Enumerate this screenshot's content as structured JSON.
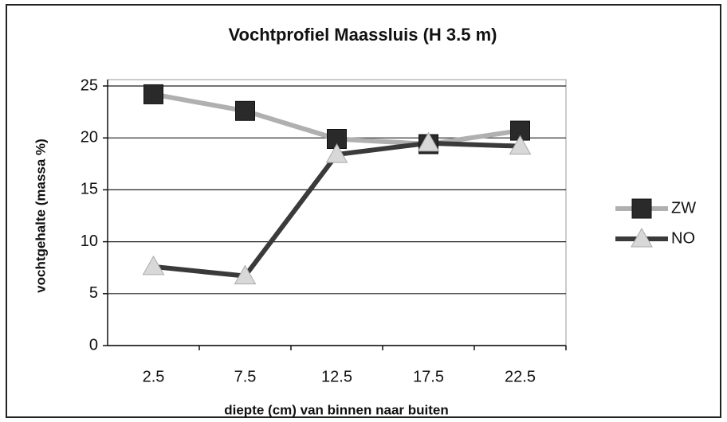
{
  "chart_data": {
    "type": "line",
    "title": "Vochtprofiel Maassluis (H 3.5 m)",
    "xlabel": "diepte (cm) van binnen naar buiten",
    "ylabel": "vochtgehalte (massa %)",
    "categories": [
      "2.5",
      "7.5",
      "12.5",
      "17.5",
      "22.5"
    ],
    "series": [
      {
        "name": "ZW",
        "color": "#b0b0b0",
        "marker": "square",
        "marker_color": "#2a2a2a",
        "values": [
          24.2,
          22.6,
          19.9,
          19.4,
          20.7
        ]
      },
      {
        "name": "NO",
        "color": "#3a3a3a",
        "marker": "triangle",
        "marker_color": "#d8d8d8",
        "values": [
          7.6,
          6.7,
          18.4,
          19.5,
          19.2
        ]
      }
    ],
    "ylim": [
      0,
      25
    ],
    "yticks": [
      0,
      5,
      10,
      15,
      20,
      25
    ],
    "grid": true,
    "legend": "right"
  }
}
